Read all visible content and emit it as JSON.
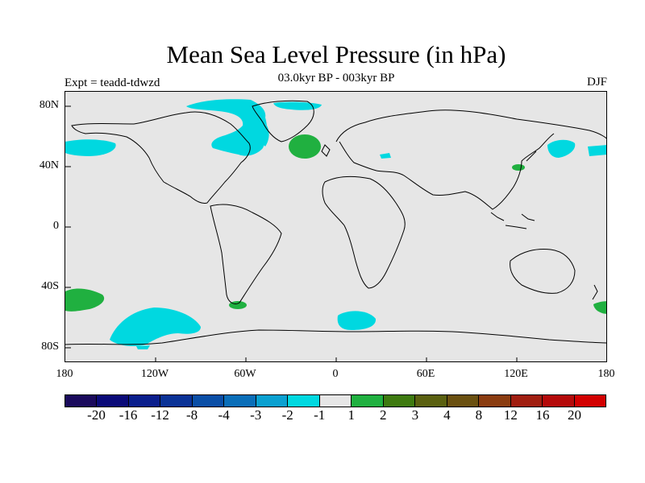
{
  "header": {
    "title": "Mean Sea Level Pressure (in hPa)",
    "subtitle": "03.0kyr BP - 003kyr BP",
    "experiment": "Expt = teadd-tdwzd",
    "season": "DJF"
  },
  "axes": {
    "y_labels": [
      "80N",
      "40N",
      "0",
      "40S",
      "80S"
    ],
    "x_labels": [
      "180",
      "120W",
      "60W",
      "0",
      "60E",
      "120E",
      "180"
    ]
  },
  "map": {
    "background_color": "#e6e6e6",
    "negative_color": "#00d8e0",
    "positive_color": "#20b040",
    "anomalies": [
      {
        "region": "North Pacific east of Kamchatka",
        "sign": "negative",
        "range": "-2 to -1"
      },
      {
        "region": "Gulf of Alaska",
        "sign": "negative",
        "range": "-2 to -1"
      },
      {
        "region": "Canadian Arctic / Greenland / Labrador",
        "sign": "negative",
        "range": "-2 to -1"
      },
      {
        "region": "North Atlantic",
        "sign": "positive",
        "range": "1 to 2"
      },
      {
        "region": "Eastern Mediterranean",
        "sign": "negative",
        "range": "-2 to -1"
      },
      {
        "region": "Sea of Okhotsk / Japan",
        "sign": "negative",
        "range": "-2 to -1"
      },
      {
        "region": "Korea",
        "sign": "positive",
        "range": "1 to 2"
      },
      {
        "region": "South Pacific near dateline",
        "sign": "positive",
        "range": "1 to 2"
      },
      {
        "region": "Amundsen / Bellingshausen Sea",
        "sign": "negative",
        "range": "-2 to -1"
      },
      {
        "region": "Southern South America",
        "sign": "positive",
        "range": "1 to 2"
      },
      {
        "region": "Southern Ocean south of Africa",
        "sign": "negative",
        "range": "-2 to -1"
      },
      {
        "region": "Southwest Pacific east of New Zealand",
        "sign": "positive",
        "range": "1 to 2"
      }
    ]
  },
  "colorbar": {
    "labels": [
      "-20",
      "-16",
      "-12",
      "-8",
      "-4",
      "-3",
      "-2",
      "-1",
      "1",
      "2",
      "3",
      "4",
      "8",
      "12",
      "16",
      "20"
    ],
    "colors": [
      "#1a0a5c",
      "#0a0a78",
      "#0a1e8c",
      "#0a3296",
      "#0a4ea6",
      "#0a6eb8",
      "#0aa0d0",
      "#00d8e0",
      "#e6e6e6",
      "#20b040",
      "#3e7a10",
      "#5a6010",
      "#6a5010",
      "#8a3c10",
      "#a01e10",
      "#b40a0a",
      "#d20000"
    ]
  }
}
